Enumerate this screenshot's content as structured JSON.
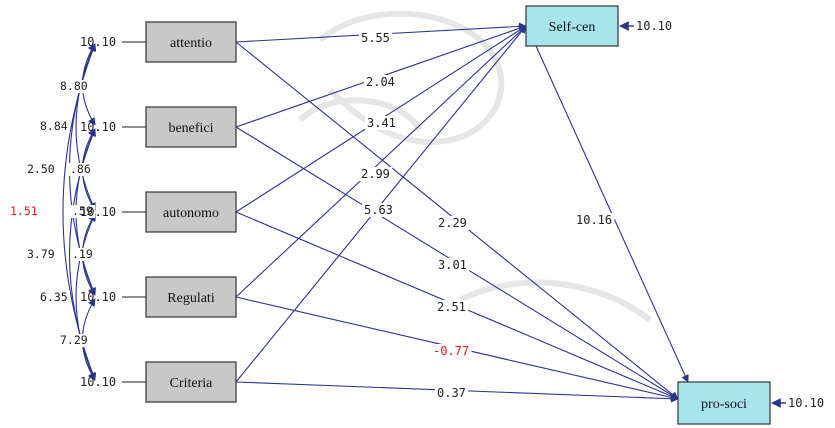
{
  "diagram": {
    "exogenous": [
      {
        "id": "attentio",
        "label": "attentio",
        "error": "10.10"
      },
      {
        "id": "benefici",
        "label": "benefici",
        "error": "10.10"
      },
      {
        "id": "autonomo",
        "label": "autonomo",
        "error": "10.10"
      },
      {
        "id": "regulati",
        "label": "Regulati",
        "error": "10.10"
      },
      {
        "id": "criteria",
        "label": "Criteria",
        "error": "10.10"
      }
    ],
    "endogenous": [
      {
        "id": "selfcen",
        "label": "Self-cen",
        "error": "10.10"
      },
      {
        "id": "prosoci",
        "label": "pro-soci",
        "error": "10.10"
      }
    ],
    "paths": [
      {
        "from": "attentio",
        "to": "selfcen",
        "value": "5.55"
      },
      {
        "from": "benefici",
        "to": "selfcen",
        "value": "2.04"
      },
      {
        "from": "autonomo",
        "to": "selfcen",
        "value": "3.41"
      },
      {
        "from": "regulati",
        "to": "selfcen",
        "value": "2.99"
      },
      {
        "from": "criteria",
        "to": "selfcen",
        "value": "5.63"
      },
      {
        "from": "attentio",
        "to": "prosoci",
        "value": "2.29"
      },
      {
        "from": "benefici",
        "to": "prosoci",
        "value": "3.01"
      },
      {
        "from": "autonomo",
        "to": "prosoci",
        "value": "2.51"
      },
      {
        "from": "regulati",
        "to": "prosoci",
        "value": "-0.77"
      },
      {
        "from": "criteria",
        "to": "prosoci",
        "value": "0.37"
      },
      {
        "from": "selfcen",
        "to": "prosoci",
        "value": "10.16"
      }
    ],
    "covariances": [
      {
        "value": "8.80"
      },
      {
        "value": "8.84"
      },
      {
        "value": "2.50"
      },
      {
        "value": ".86"
      },
      {
        "value": "1.51"
      },
      {
        "value": ".59"
      },
      {
        "value": "3.79"
      },
      {
        "value": ".19"
      },
      {
        "value": "6.35"
      },
      {
        "value": "7.29"
      }
    ],
    "colors": {
      "arrow": "#2a3590",
      "exo_box_fill": "#c8c8c8",
      "endo_box_fill": "#a8e4ec",
      "negative": "#e02020"
    }
  }
}
